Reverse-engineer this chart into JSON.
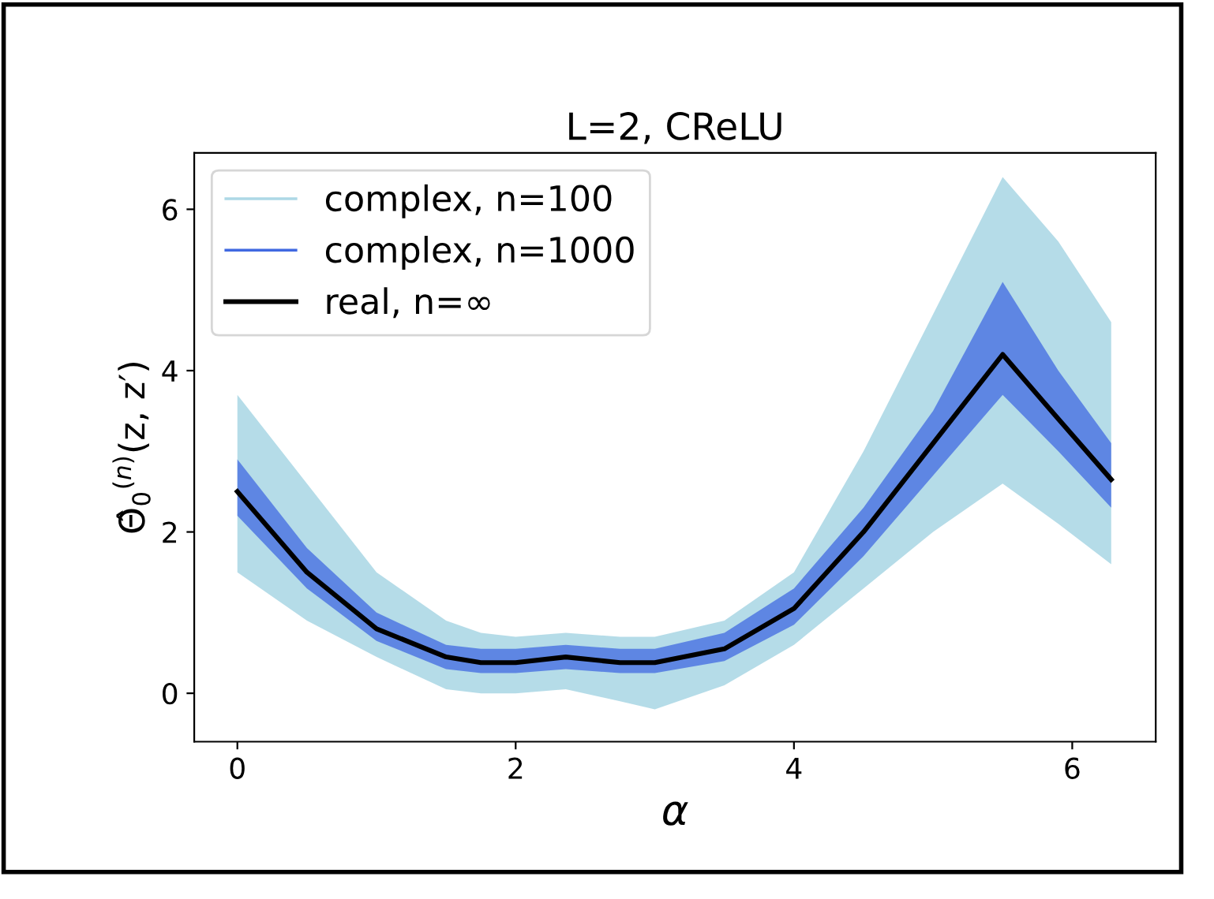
{
  "chart_data": {
    "type": "line",
    "title": "L=2, CReLU",
    "xlabel": "α",
    "ylabel": "Θ̂$_{0}$$^{(n)}$(z, z′)",
    "x": [
      0,
      0.5,
      1.0,
      1.5,
      1.75,
      2.0,
      2.36,
      2.75,
      3.0,
      3.5,
      4.0,
      4.5,
      5.0,
      5.5,
      5.9,
      6.28
    ],
    "series": [
      {
        "name": "complex, n=100",
        "color": "#add8e6",
        "values": [
          null,
          null,
          null,
          null,
          null,
          null,
          null,
          null,
          null,
          null,
          null,
          null,
          null,
          null,
          null,
          null
        ],
        "lower": [
          1.5,
          0.9,
          0.45,
          0.05,
          0.0,
          0.0,
          0.05,
          -0.1,
          -0.2,
          0.1,
          0.6,
          1.3,
          2.0,
          2.6,
          2.1,
          1.6
        ],
        "upper": [
          3.7,
          2.6,
          1.5,
          0.9,
          0.75,
          0.7,
          0.75,
          0.7,
          0.7,
          0.9,
          1.5,
          3.0,
          4.7,
          6.4,
          5.6,
          4.6
        ]
      },
      {
        "name": "complex, n=1000",
        "color": "#4169e1",
        "values": [
          null,
          null,
          null,
          null,
          null,
          null,
          null,
          null,
          null,
          null,
          null,
          null,
          null,
          null,
          null,
          null
        ],
        "lower": [
          2.2,
          1.3,
          0.65,
          0.3,
          0.25,
          0.25,
          0.3,
          0.25,
          0.25,
          0.4,
          0.85,
          1.7,
          2.7,
          3.7,
          3.0,
          2.3
        ],
        "upper": [
          2.9,
          1.8,
          1.0,
          0.6,
          0.55,
          0.55,
          0.6,
          0.55,
          0.55,
          0.75,
          1.3,
          2.3,
          3.5,
          5.1,
          4.0,
          3.1
        ]
      },
      {
        "name": "real, n=∞",
        "color": "#000000",
        "values": [
          2.5,
          1.5,
          0.8,
          0.45,
          0.38,
          0.38,
          0.45,
          0.38,
          0.38,
          0.55,
          1.05,
          2.0,
          3.1,
          4.2,
          3.4,
          2.65
        ]
      }
    ],
    "xlim": [
      -0.31,
      6.6
    ],
    "ylim": [
      -0.6,
      6.7
    ],
    "xticks": [
      0,
      2,
      4,
      6
    ],
    "yticks": [
      0,
      2,
      4,
      6
    ],
    "legend": "upper left",
    "grid": false,
    "marker": "none",
    "line_style": "solid"
  }
}
